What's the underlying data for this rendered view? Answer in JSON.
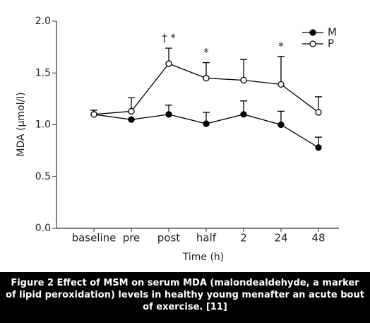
{
  "chart_data": {
    "type": "line",
    "x_label": "Time (h)",
    "y_label": "MDA (µmol/l)",
    "categories": [
      "baseline",
      "pre",
      "post",
      "half",
      "2",
      "24",
      "48"
    ],
    "series": [
      {
        "name": "M",
        "color": "#000000",
        "marker": "filled",
        "values": [
          1.1,
          1.05,
          1.1,
          1.01,
          1.1,
          1.0,
          0.78
        ],
        "errors": [
          0.04,
          0,
          0.09,
          0.11,
          0.13,
          0.13,
          0.1
        ]
      },
      {
        "name": "P",
        "color": "#000000",
        "marker": "open",
        "values": [
          1.1,
          1.13,
          1.59,
          1.45,
          1.43,
          1.39,
          1.12
        ],
        "errors": [
          0.04,
          0.13,
          0.15,
          0.15,
          0.2,
          0.27,
          0.15
        ]
      }
    ],
    "annotations": [
      {
        "category": "post",
        "text": "† *",
        "value": 1.74
      },
      {
        "category": "half",
        "text": "*",
        "value": 1.6
      },
      {
        "category": "24",
        "text": "*",
        "value": 1.66
      }
    ],
    "ylim": [
      0,
      2
    ],
    "yticks": [
      {
        "value": 0,
        "label": "0.0"
      },
      0.5,
      {
        "value": 1,
        "label": "1.0"
      },
      1.5,
      {
        "value": 2,
        "label": "2.0"
      }
    ],
    "legend": "upper-right"
  },
  "caption": "Figure 2 Effect of MSM on serum MDA (malondealdehyde, a marker of lipid peroxidation) levels in healthy young menafter an acute bout of exercise. [11]"
}
